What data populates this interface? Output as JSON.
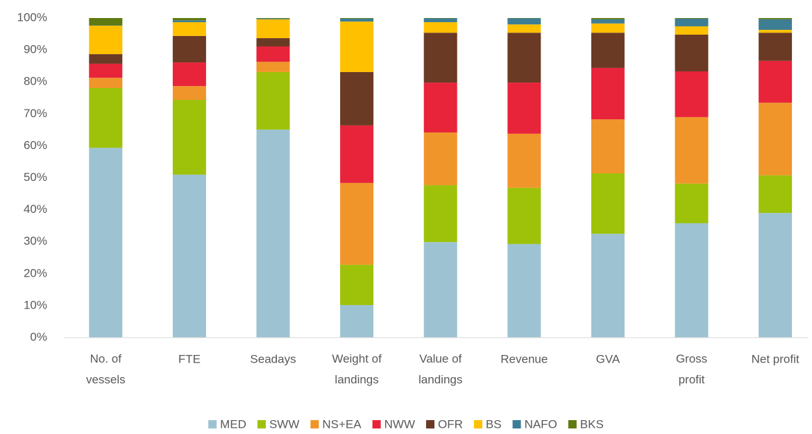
{
  "chart_data": {
    "type": "stacked_bar",
    "categories": [
      "No. of vessels",
      "FTE",
      "Seadays",
      "Weight of landings",
      "Value of landings",
      "Revenue",
      "GVA",
      "Gross profit",
      "Net profit"
    ],
    "series": [
      {
        "name": "MED",
        "color": "#9dc3d2",
        "values": [
          59.4,
          51.0,
          65.1,
          10.2,
          29.9,
          29.3,
          32.5,
          35.8,
          39.0
        ]
      },
      {
        "name": "SWW",
        "color": "#9dc209",
        "values": [
          18.7,
          23.4,
          18.0,
          12.6,
          17.8,
          17.6,
          18.9,
          12.4,
          11.8
        ]
      },
      {
        "name": "NS+EA",
        "color": "#f0952a",
        "values": [
          3.2,
          4.3,
          3.2,
          25.6,
          16.5,
          16.9,
          16.9,
          20.8,
          22.7
        ]
      },
      {
        "name": "NWW",
        "color": "#e8243a",
        "values": [
          4.4,
          7.4,
          4.8,
          18.0,
          15.6,
          16.0,
          16.1,
          14.3,
          13.1
        ]
      },
      {
        "name": "OFR",
        "color": "#6b3a24",
        "values": [
          3.0,
          8.3,
          2.6,
          16.7,
          15.6,
          15.6,
          11.0,
          11.5,
          8.8
        ]
      },
      {
        "name": "BS",
        "color": "#ffc000",
        "values": [
          8.9,
          4.3,
          5.9,
          15.8,
          3.3,
          2.6,
          2.9,
          2.6,
          0.9
        ]
      },
      {
        "name": "NAFO",
        "color": "#3e7e95",
        "values": [
          0.1,
          0.6,
          0.2,
          0.9,
          1.2,
          1.9,
          1.3,
          2.4,
          3.3
        ]
      },
      {
        "name": "BKS",
        "color": "#5e7a10",
        "values": [
          2.3,
          0.7,
          0.2,
          0.2,
          0.1,
          0.1,
          0.4,
          0.2,
          0.4
        ]
      }
    ],
    "ylim": [
      0,
      100
    ],
    "yticks": [
      {
        "value": 0,
        "label": "0%"
      },
      {
        "value": 10,
        "label": "10%"
      },
      {
        "value": 20,
        "label": "20%"
      },
      {
        "value": 30,
        "label": "30%"
      },
      {
        "value": 40,
        "label": "40%"
      },
      {
        "value": 50,
        "label": "50%"
      },
      {
        "value": 60,
        "label": "60%"
      },
      {
        "value": 70,
        "label": "70%"
      },
      {
        "value": 80,
        "label": "80%"
      },
      {
        "value": 90,
        "label": "90%"
      },
      {
        "value": 100,
        "label": "100%"
      }
    ],
    "grid": false,
    "legend": "bottom"
  }
}
